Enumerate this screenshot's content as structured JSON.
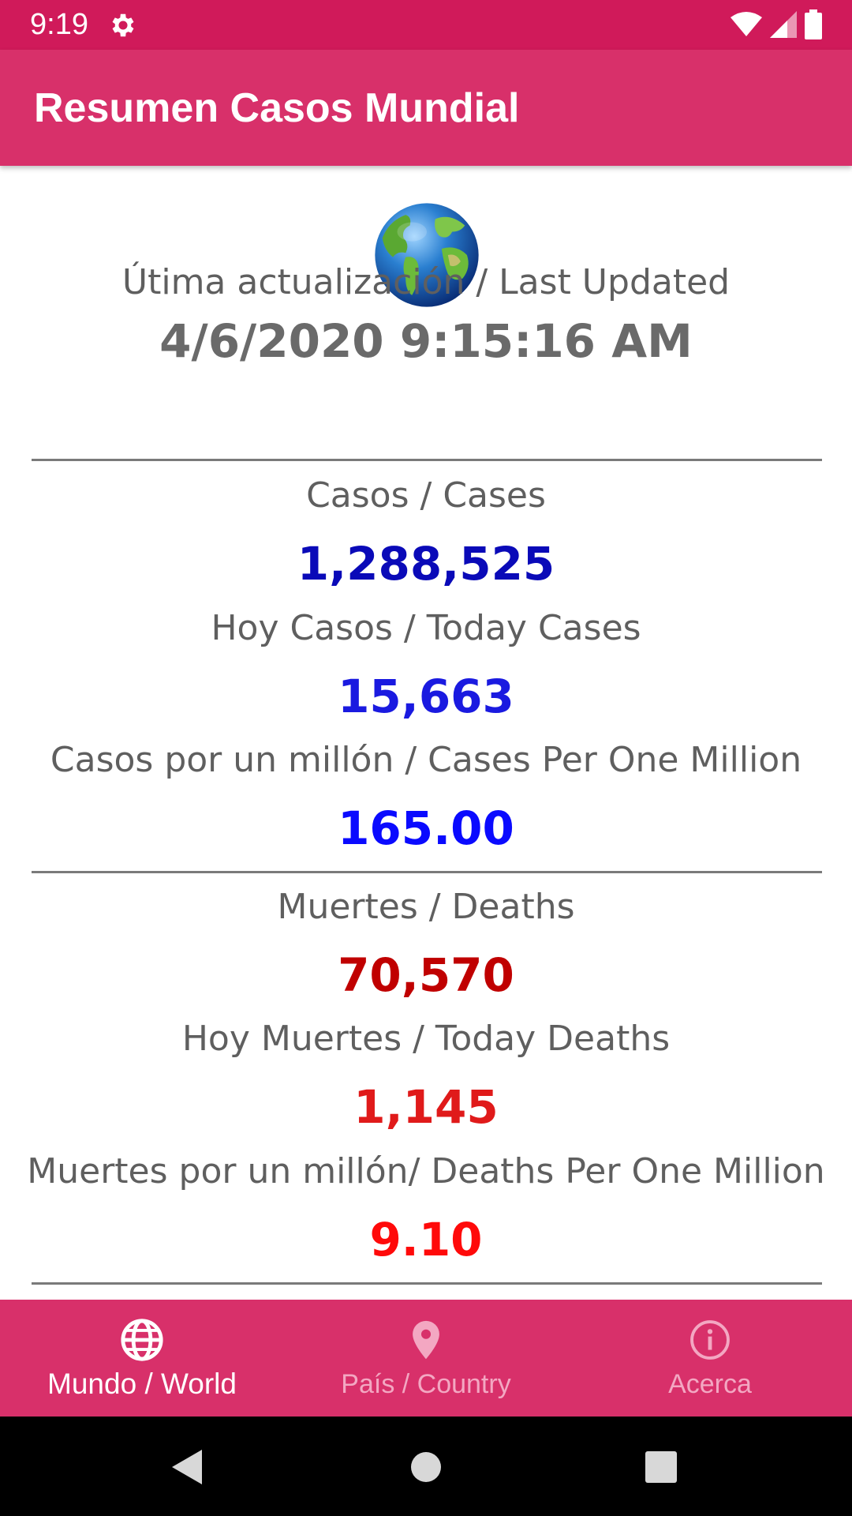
{
  "status_bar": {
    "time": "9:19",
    "icons": [
      "gear-icon",
      "wifi-icon",
      "signal-icon",
      "battery-icon"
    ]
  },
  "app_bar": {
    "title": "Resumen Casos Mundial"
  },
  "main": {
    "icon": "globe-icon",
    "last_updated_label": "Útima actualización / Last Updated",
    "last_updated_value": "4/6/2020 9:15:16 AM",
    "cases_label": "Casos / Cases",
    "cases_value": "1,288,525",
    "today_cases_label": "Hoy Casos / Today Cases",
    "today_cases_value": "15,663",
    "cases_per_million_label": "Casos por un millón / Cases Per One Million",
    "cases_per_million_value": "165.00",
    "deaths_label": "Muertes / Deaths",
    "deaths_value": "70,570",
    "today_deaths_label": "Hoy Muertes / Today Deaths",
    "today_deaths_value": "1,145",
    "deaths_per_million_label": "Muertes por un millón/ Deaths Per One Million",
    "deaths_per_million_value": "9.10"
  },
  "colors": {
    "status_bar": "#d01a5a",
    "app_bar": "#d8306a",
    "cases_dark_blue": "#0a0ab8",
    "cases_blue": "#1a1ae0",
    "deaths_dark_red": "#c00000",
    "deaths_red": "#e01a1a",
    "deaths_bright_red": "#ff0a0a",
    "label_gray": "#5f5f5f"
  },
  "bottom_nav": {
    "items": [
      {
        "label": "Mundo / World",
        "icon": "globe-icon",
        "active": true
      },
      {
        "label": "País / Country",
        "icon": "location-pin-icon",
        "active": false
      },
      {
        "label": "Acerca",
        "icon": "info-icon",
        "active": false
      }
    ]
  },
  "system_nav": {
    "icons": [
      "back-icon",
      "home-icon",
      "recents-icon"
    ]
  }
}
